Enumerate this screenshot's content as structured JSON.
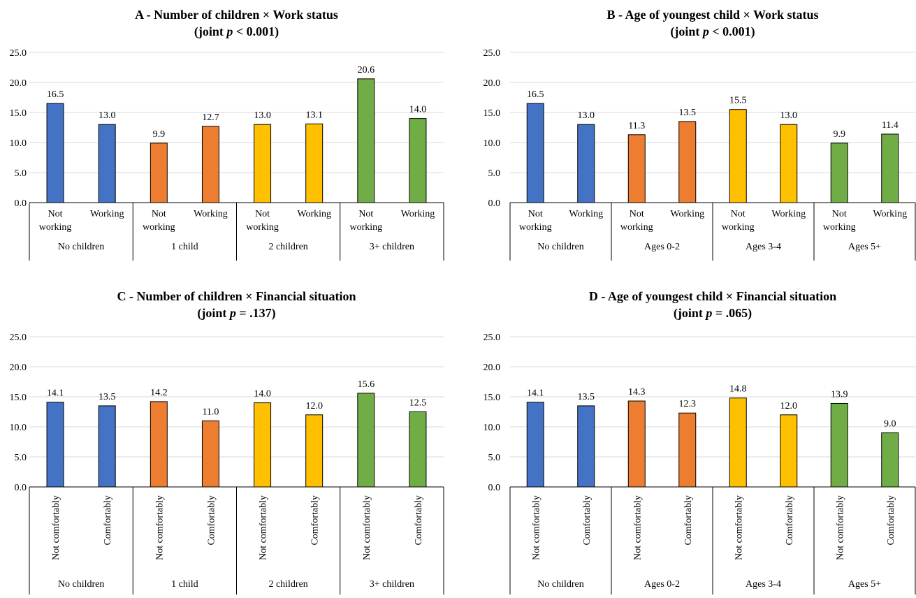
{
  "chart_data": [
    {
      "type": "bar",
      "title": "A - Number of children × Work status",
      "subtitle": {
        "pre": "(joint ",
        "italic": "p",
        "post": " < 0.001)"
      },
      "ylim": [
        0,
        25
      ],
      "yticks": [
        "0.0",
        "5.0",
        "10.0",
        "15.0",
        "20.0",
        "25.0"
      ],
      "grid": true,
      "tick_rotation": "horizontal",
      "groups": [
        {
          "label": "No children",
          "color": "#4472C4",
          "bars": [
            {
              "label": "Not working",
              "value": 16.5
            },
            {
              "label": "Working",
              "value": 13.0
            }
          ]
        },
        {
          "label": "1 child",
          "color": "#ED7D31",
          "bars": [
            {
              "label": "Not working",
              "value": 9.9
            },
            {
              "label": "Working",
              "value": 12.7
            }
          ]
        },
        {
          "label": "2 children",
          "color": "#FFC000",
          "bars": [
            {
              "label": "Not working",
              "value": 13.0
            },
            {
              "label": "Working",
              "value": 13.1
            }
          ]
        },
        {
          "label": "3+ children",
          "color": "#70AD47",
          "bars": [
            {
              "label": "Not working",
              "value": 20.6
            },
            {
              "label": "Working",
              "value": 14.0
            }
          ]
        }
      ]
    },
    {
      "type": "bar",
      "title": "B - Age of youngest child × Work status",
      "subtitle": {
        "pre": "(joint ",
        "italic": "p",
        "post": " < 0.001)"
      },
      "ylim": [
        0,
        25
      ],
      "yticks": [
        "0.0",
        "5.0",
        "10.0",
        "15.0",
        "20.0",
        "25.0"
      ],
      "grid": true,
      "tick_rotation": "horizontal",
      "groups": [
        {
          "label": "No children",
          "color": "#4472C4",
          "bars": [
            {
              "label": "Not working",
              "value": 16.5
            },
            {
              "label": "Working",
              "value": 13.0
            }
          ]
        },
        {
          "label": "Ages 0-2",
          "color": "#ED7D31",
          "bars": [
            {
              "label": "Not working",
              "value": 11.3
            },
            {
              "label": "Working",
              "value": 13.5
            }
          ]
        },
        {
          "label": "Ages 3-4",
          "color": "#FFC000",
          "bars": [
            {
              "label": "Not working",
              "value": 15.5
            },
            {
              "label": "Working",
              "value": 13.0
            }
          ]
        },
        {
          "label": "Ages 5+",
          "color": "#70AD47",
          "bars": [
            {
              "label": "Not working",
              "value": 9.9
            },
            {
              "label": "Working",
              "value": 11.4
            }
          ]
        }
      ]
    },
    {
      "type": "bar",
      "title": "C - Number of children × Financial situation",
      "subtitle": {
        "pre": "(joint ",
        "italic": "p",
        "post": " = .137)"
      },
      "ylim": [
        0,
        25
      ],
      "yticks": [
        "0.0",
        "5.0",
        "10.0",
        "15.0",
        "20.0",
        "25.0"
      ],
      "grid": true,
      "tick_rotation": "vertical",
      "groups": [
        {
          "label": "No children",
          "color": "#4472C4",
          "bars": [
            {
              "label": "Not comfortably",
              "value": 14.1
            },
            {
              "label": "Comfortably",
              "value": 13.5
            }
          ]
        },
        {
          "label": "1 child",
          "color": "#ED7D31",
          "bars": [
            {
              "label": "Not comfortably",
              "value": 14.2
            },
            {
              "label": "Comfortably",
              "value": 11.0
            }
          ]
        },
        {
          "label": "2 children",
          "color": "#FFC000",
          "bars": [
            {
              "label": "Not comfortably",
              "value": 14.0
            },
            {
              "label": "Comfortably",
              "value": 12.0
            }
          ]
        },
        {
          "label": "3+ children",
          "color": "#70AD47",
          "bars": [
            {
              "label": "Not comfortably",
              "value": 15.6
            },
            {
              "label": "Comfortably",
              "value": 12.5
            }
          ]
        }
      ]
    },
    {
      "type": "bar",
      "title": "D - Age of youngest child × Financial situation",
      "subtitle": {
        "pre": "(joint ",
        "italic": "p",
        "post": " = .065)"
      },
      "ylim": [
        0,
        25
      ],
      "yticks": [
        "0.0",
        "5.0",
        "10.0",
        "15.0",
        "20.0",
        "25.0"
      ],
      "grid": true,
      "tick_rotation": "vertical",
      "groups": [
        {
          "label": "No children",
          "color": "#4472C4",
          "bars": [
            {
              "label": "Not comfortably",
              "value": 14.1
            },
            {
              "label": "Comfortably",
              "value": 13.5
            }
          ]
        },
        {
          "label": "Ages 0-2",
          "color": "#ED7D31",
          "bars": [
            {
              "label": "Not comfortably",
              "value": 14.3
            },
            {
              "label": "Comfortably",
              "value": 12.3
            }
          ]
        },
        {
          "label": "Ages 3-4",
          "color": "#FFC000",
          "bars": [
            {
              "label": "Not comfortably",
              "value": 14.8
            },
            {
              "label": "Comfortably",
              "value": 12.0
            }
          ]
        },
        {
          "label": "Ages 5+",
          "color": "#70AD47",
          "bars": [
            {
              "label": "Not comfortably",
              "value": 13.9
            },
            {
              "label": "Comfortably",
              "value": 9.0
            }
          ]
        }
      ]
    }
  ]
}
